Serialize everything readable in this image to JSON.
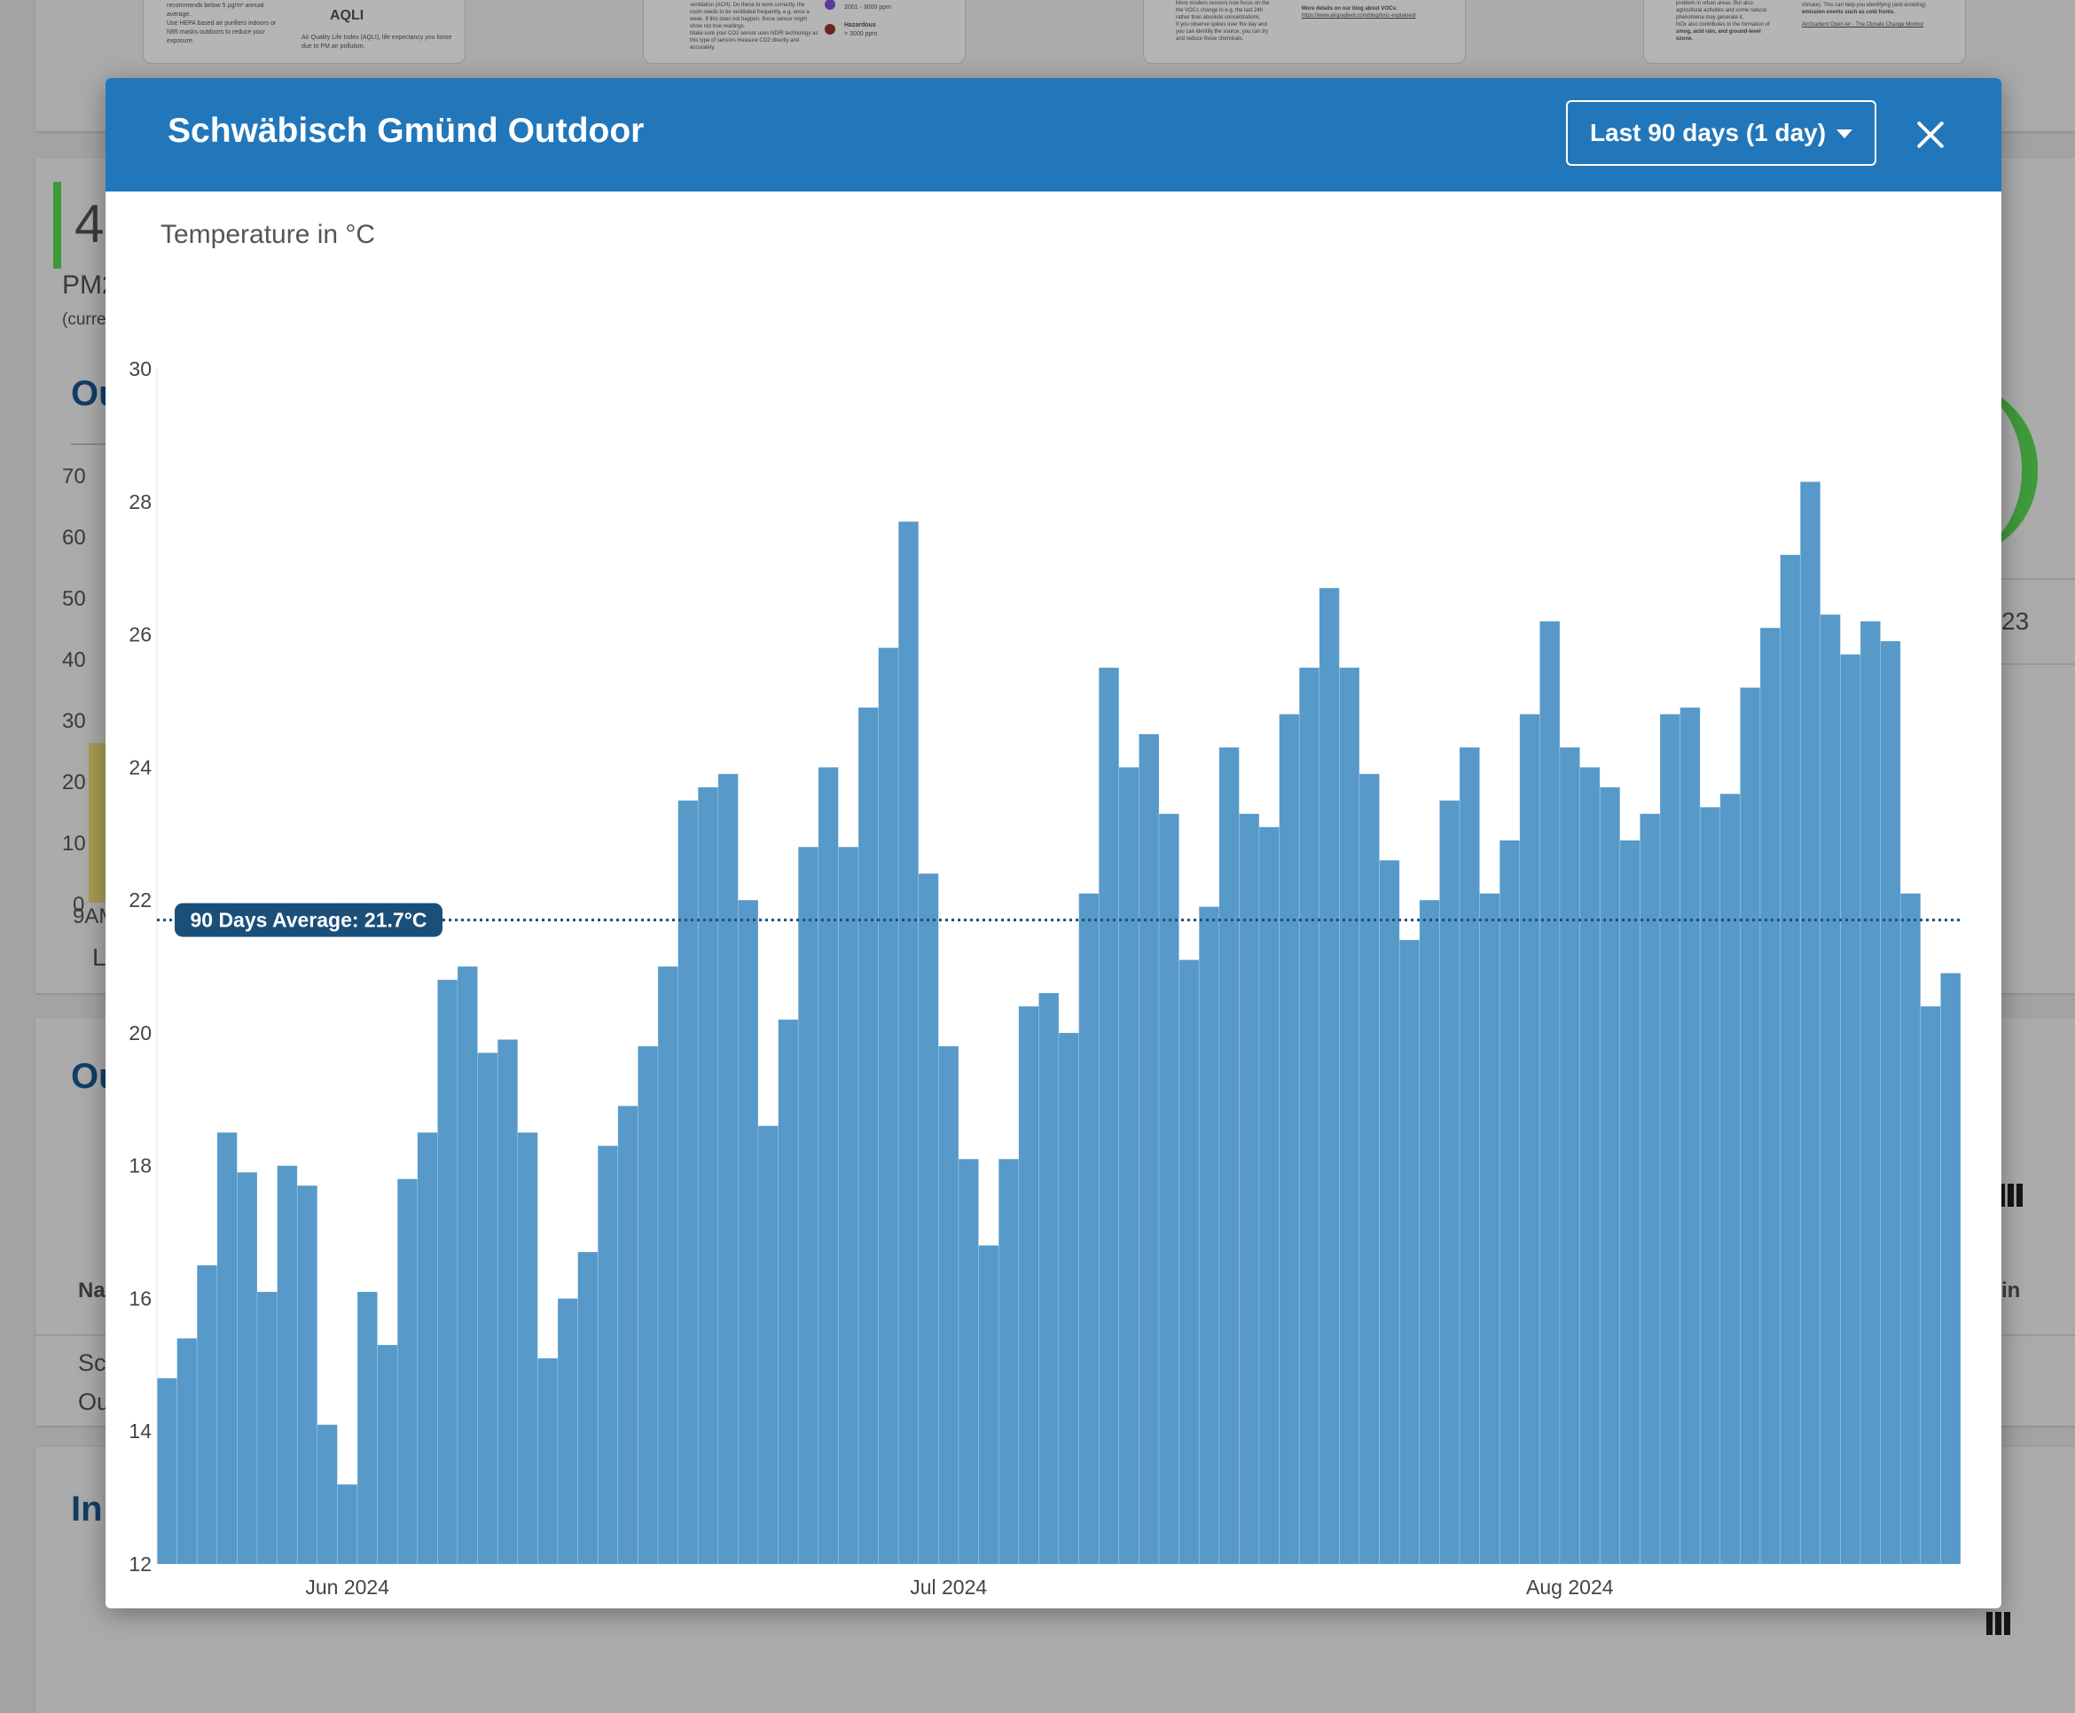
{
  "modal": {
    "title": "Schwäbisch Gmünd Outdoor",
    "range_label": "Last 90 days (1 day)",
    "close_icon": "close-icon"
  },
  "background": {
    "metric_value": "4",
    "metric_label": "PM2",
    "metric_note": "(curre",
    "section_1": "Ou",
    "section_2": "Ou",
    "section_3": "In",
    "y_ticks": [
      "70",
      "60",
      "50",
      "40",
      "30",
      "20",
      "10",
      "0"
    ],
    "axis_label": "9AM",
    "axis_label_2": "L",
    "right_value": "23",
    "col_name": "Na",
    "col_right": "in",
    "row_text_1": "Sc",
    "row_text_2": "Ou",
    "mini_cards": [
      {
        "l1": "recommends below 5 µg/m³ annual",
        "l2": "average.",
        "l3": "Use HEPA based air purifiers indoors or",
        "l4": "N95 masks outdoors to reduce your",
        "l5": "exposure.",
        "brand": "AQLI",
        "l6": "Air Quality Life Index (AQLI), life expectancy you loose",
        "l7": "due to PM air pollution."
      },
      {
        "l1": "ventilation (ACH). Do these to work correctly, the",
        "l2": "room needs to be ventilated frequently, e.g. once a",
        "l3": "week. If this does not happen, these sensor might",
        "l4": "show not true readings.",
        "l5": "Make sure your CO2 sensor uses NDIR technology as",
        "l6": "this type of sensors measure CO2 directly and",
        "l7": "accurately.",
        "r1": "2001 - 3000 ppm",
        "r2": "Hazardous",
        "r3": "> 3000 ppm"
      },
      {
        "l1": "More modern sensors now focus on the",
        "l2": "the VOCs change in e.g. the last 24h",
        "l3": "rather than absolute concentrations.",
        "l4": "If you observe spikes over the day and",
        "l5": "you can identify the source, you can try",
        "l6": "and reduce those chemicals.",
        "r1": "More details on our blog about VOCs:",
        "r2": "https://www.airgradient.com/blog/tvoc-explained/"
      },
      {
        "l1": "problem in urban areas. But also",
        "l2": "agricultural activities and some natural",
        "l3": "phenomena may generate it.",
        "l4": "NOx also contributes to the formation of",
        "l5": "smog, acid rain, and ground-level",
        "l6": "ozone.",
        "r1": "climate). This can help you identifying (and avoiding)",
        "r2": "emission events such as cold fronts.",
        "r3": "AirGradient Open Air - The Climate Change Monitor"
      }
    ]
  },
  "chart_data": {
    "type": "bar",
    "title": "Temperature in °C",
    "ylim": [
      12,
      30
    ],
    "yticks": [
      12,
      14,
      16,
      18,
      20,
      22,
      24,
      26,
      28,
      30
    ],
    "x_start": "2024-05-23",
    "x_end": "2024-08-20",
    "xticks": [
      {
        "date": "2024-06-01",
        "label": "Jun 2024"
      },
      {
        "date": "2024-07-01",
        "label": "Jul 2024"
      },
      {
        "date": "2024-08-01",
        "label": "Aug 2024"
      }
    ],
    "values": [
      14.8,
      15.4,
      16.5,
      18.5,
      17.9,
      16.1,
      18.0,
      17.7,
      14.1,
      13.2,
      16.1,
      15.3,
      17.8,
      18.5,
      20.8,
      21.0,
      19.7,
      19.9,
      18.5,
      15.1,
      16.0,
      16.7,
      18.3,
      18.9,
      19.8,
      21.0,
      23.5,
      23.7,
      23.9,
      22.0,
      18.6,
      20.2,
      22.8,
      24.0,
      22.8,
      24.9,
      25.8,
      27.7,
      22.4,
      19.8,
      18.1,
      16.8,
      18.1,
      20.4,
      20.6,
      20.0,
      22.1,
      25.5,
      24.0,
      24.5,
      23.3,
      21.1,
      21.9,
      24.3,
      23.3,
      23.1,
      24.8,
      25.5,
      26.7,
      25.5,
      23.9,
      22.6,
      21.4,
      22.0,
      23.5,
      24.3,
      22.1,
      22.9,
      24.8,
      26.2,
      24.3,
      24.0,
      23.7,
      22.9,
      23.3,
      24.8,
      24.9,
      23.4,
      23.6,
      25.2,
      26.1,
      27.2,
      28.3,
      26.3,
      25.7,
      26.2,
      25.9,
      22.1,
      20.4,
      20.9
    ],
    "average": {
      "value": 21.7,
      "label": "90 Days Average: 21.7°C"
    },
    "bar_color": "#5799c9",
    "avg_line_color": "#1a4f7a"
  },
  "colors": {
    "header": "#2277bb",
    "modal_bg": "#ffffff",
    "overlay": "#a3a3a3"
  }
}
